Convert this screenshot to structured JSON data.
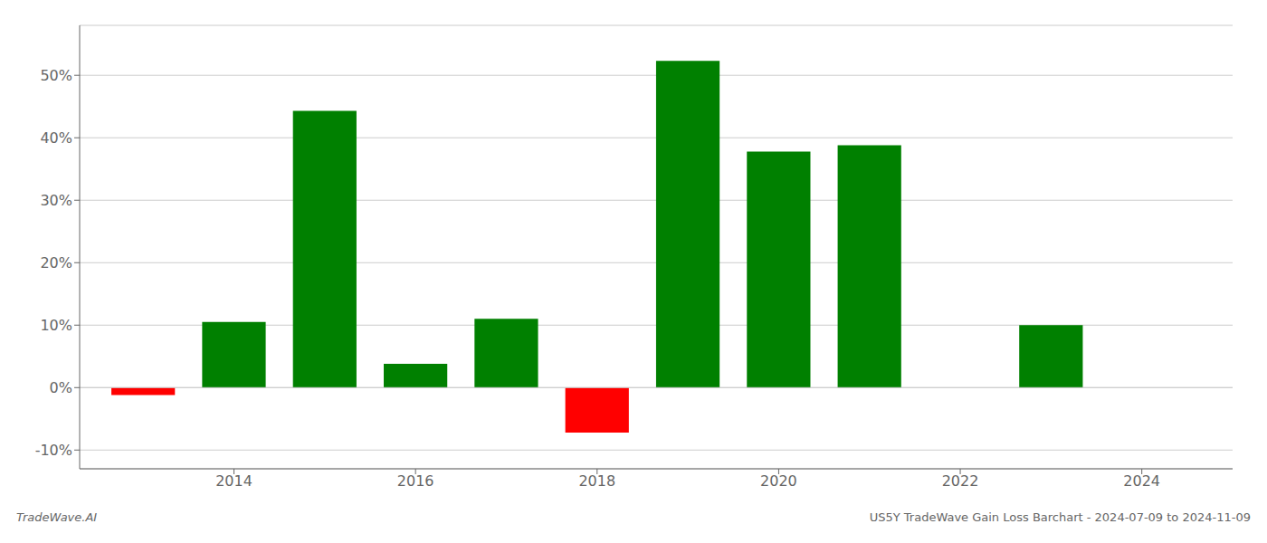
{
  "chart_data": {
    "type": "bar",
    "x": [
      2013,
      2014,
      2015,
      2016,
      2017,
      2018,
      2019,
      2020,
      2021,
      2022,
      2023
    ],
    "values": [
      -1.2,
      10.5,
      44.3,
      3.8,
      11.0,
      -7.2,
      52.3,
      37.8,
      38.8,
      0.0,
      10.0
    ],
    "colors": [
      "#ff0000",
      "#008000",
      "#008000",
      "#008000",
      "#008000",
      "#ff0000",
      "#008000",
      "#008000",
      "#008000",
      "#008000",
      "#008000"
    ],
    "xlim": [
      2012.3,
      2025.0
    ],
    "xticks": [
      2014,
      2016,
      2018,
      2020,
      2022,
      2024
    ],
    "ylim": [
      -13,
      58
    ],
    "yticks": [
      {
        "value": -10,
        "label": "-10%"
      },
      {
        "value": 0,
        "label": "0%"
      },
      {
        "value": 10,
        "label": "10%"
      },
      {
        "value": 20,
        "label": "20%"
      },
      {
        "value": 30,
        "label": "30%"
      },
      {
        "value": 40,
        "label": "40%"
      },
      {
        "value": 50,
        "label": "50%"
      }
    ],
    "grid": true,
    "annotations": [
      "TradeWave.AI",
      "US5Y TradeWave Gain Loss Barchart - 2024-07-09 to 2024-11-09"
    ]
  }
}
